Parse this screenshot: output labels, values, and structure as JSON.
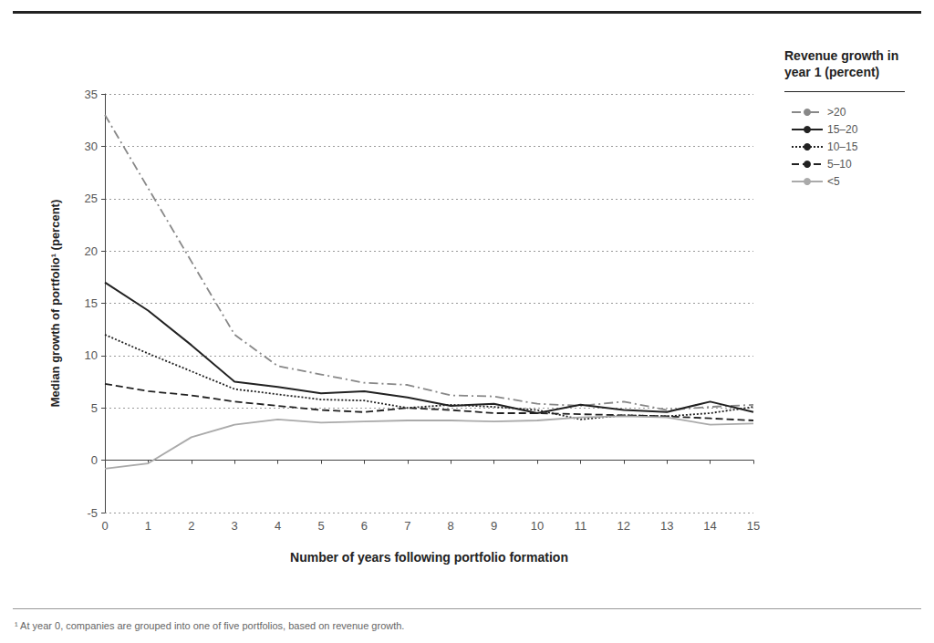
{
  "chart_data": {
    "type": "line",
    "y_label": "Median growth of portfolio¹ (percent)",
    "x_label": "Number of years following portfolio formation",
    "legend_title": "Revenue growth in year 1 (percent)",
    "footnote": "¹ At year 0, companies are grouped into one of five portfolios, based on revenue growth.",
    "x": [
      0,
      1,
      2,
      3,
      4,
      5,
      6,
      7,
      8,
      9,
      10,
      11,
      12,
      13,
      14,
      15
    ],
    "series": [
      {
        "name": ">20",
        "color": "#888888",
        "line_style": "dashdot",
        "values": [
          33,
          26,
          19,
          12,
          9,
          8.2,
          7.4,
          7.2,
          6.2,
          6.1,
          5.4,
          5.2,
          5.6,
          4.8,
          5.1,
          5.3
        ]
      },
      {
        "name": "15–20",
        "color": "#222222",
        "line_style": "solid",
        "values": [
          17,
          14.3,
          11,
          7.5,
          7,
          6.4,
          6.6,
          6,
          5.2,
          5.4,
          4.5,
          5.3,
          4.8,
          4.6,
          5.6,
          4.6
        ]
      },
      {
        "name": "10–15",
        "color": "#222222",
        "line_style": "dotted",
        "values": [
          12,
          10.2,
          8.5,
          6.8,
          6.3,
          5.8,
          5.7,
          5,
          5.3,
          5.1,
          4.8,
          3.9,
          4.3,
          4.2,
          4.5,
          5.1
        ]
      },
      {
        "name": "5–10",
        "color": "#222222",
        "line_style": "dashed",
        "values": [
          7.3,
          6.6,
          6.2,
          5.6,
          5.2,
          4.8,
          4.6,
          5,
          4.8,
          4.5,
          4.5,
          4.4,
          4.3,
          4.2,
          4,
          3.8
        ]
      },
      {
        "name": "<5",
        "color": "#aaaaaa",
        "line_style": "solid",
        "values": [
          -0.8,
          -0.3,
          2.2,
          3.4,
          3.9,
          3.6,
          3.7,
          3.8,
          3.8,
          3.7,
          3.8,
          4.1,
          4.2,
          4.1,
          3.4,
          3.5
        ]
      }
    ],
    "xlim": [
      0,
      15
    ],
    "xticks": [
      0,
      1,
      2,
      3,
      4,
      5,
      6,
      7,
      8,
      9,
      10,
      11,
      12,
      13,
      14,
      15
    ],
    "ylim": [
      -5,
      35
    ],
    "yticks": [
      -5,
      0,
      5,
      10,
      15,
      20,
      25,
      30,
      35
    ],
    "grid": true,
    "legend": "right"
  }
}
